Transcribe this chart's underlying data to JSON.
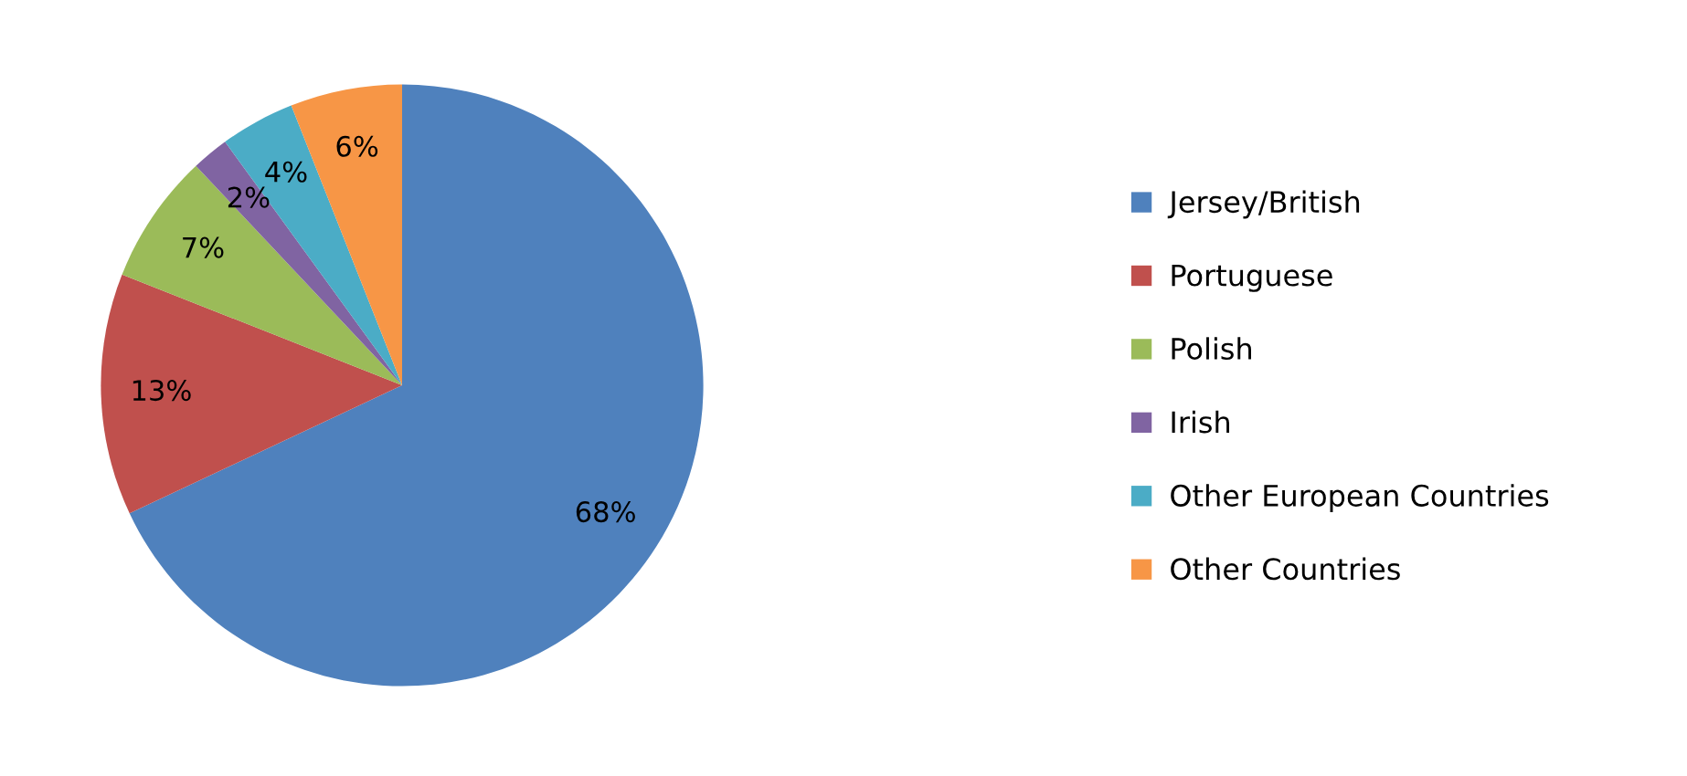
{
  "chart_data": {
    "type": "pie",
    "categories": [
      "Jersey/British",
      "Portuguese",
      "Polish",
      "Irish",
      "Other European Countries",
      "Other Countries"
    ],
    "values": [
      68,
      13,
      7,
      2,
      4,
      6
    ],
    "value_labels": [
      "68%",
      "13%",
      "7%",
      "2%",
      "4%",
      "6%"
    ],
    "colors": [
      "#4f81bd",
      "#c0504d",
      "#9bbb59",
      "#8064a2",
      "#4bacc6",
      "#f79646"
    ],
    "legend": "right"
  }
}
